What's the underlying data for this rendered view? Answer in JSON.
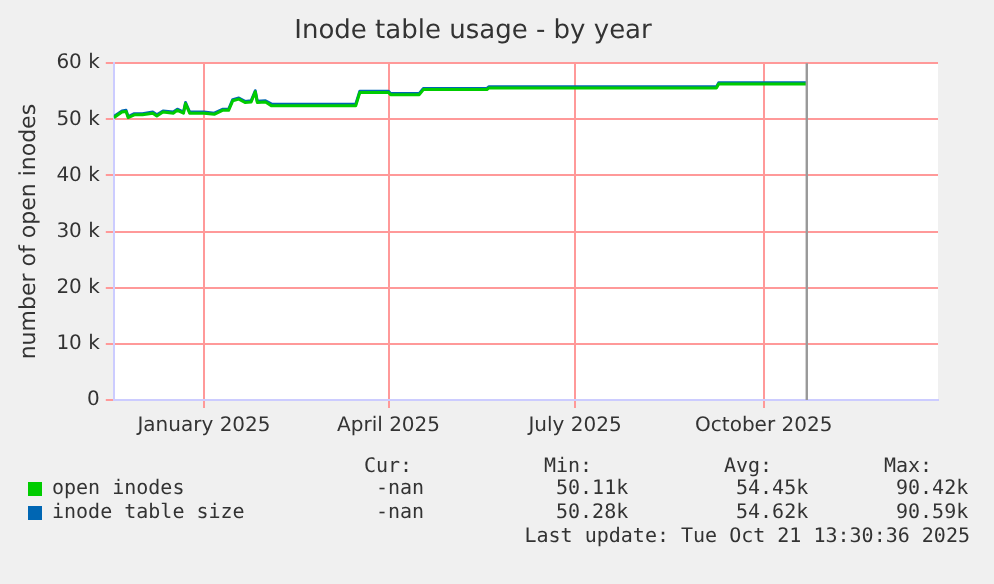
{
  "chart_data": {
    "type": "line",
    "title": "Inode table usage - by year",
    "ylabel": "number of open inodes",
    "x": [
      "2024-11-18",
      "2024-11-22",
      "2024-11-24",
      "2024-11-25",
      "2024-11-28",
      "2024-12-02",
      "2024-12-07",
      "2024-12-09",
      "2024-12-12",
      "2024-12-17",
      "2024-12-19",
      "2024-12-22",
      "2024-12-23",
      "2024-12-25",
      "2025-01-01",
      "2025-01-06",
      "2025-01-10",
      "2025-01-13",
      "2025-01-15",
      "2025-01-18",
      "2025-01-21",
      "2025-01-24",
      "2025-01-26",
      "2025-01-27",
      "2025-01-31",
      "2025-02-03",
      "2025-02-07",
      "2025-03-16",
      "2025-03-18",
      "2025-04-01",
      "2025-04-02",
      "2025-04-16",
      "2025-04-18",
      "2025-05-19",
      "2025-05-20",
      "2025-09-08",
      "2025-09-09",
      "2025-10-22"
    ],
    "series": [
      {
        "name": "open inodes",
        "color": "#00cc00",
        "values": [
          50300,
          51300,
          51400,
          50300,
          50800,
          50800,
          51100,
          50600,
          51300,
          51100,
          51600,
          51100,
          52800,
          51100,
          51100,
          50900,
          51600,
          51600,
          53300,
          53600,
          53000,
          53100,
          54900,
          53000,
          53100,
          52400,
          52400,
          52400,
          54800,
          54800,
          54400,
          54400,
          55300,
          55300,
          55600,
          55600,
          56300,
          56300
        ]
      },
      {
        "name": "inode table size",
        "color": "#0066b3",
        "values": [
          50500,
          51500,
          51600,
          50500,
          51000,
          51000,
          51300,
          50800,
          51500,
          51300,
          51800,
          51300,
          53000,
          51300,
          51300,
          51100,
          51800,
          51800,
          53500,
          53800,
          53200,
          53300,
          55100,
          53200,
          53300,
          52700,
          52700,
          52700,
          55000,
          55000,
          54600,
          54600,
          55500,
          55500,
          55800,
          55800,
          56500,
          56500
        ]
      }
    ],
    "xlim": [
      "2024-11-18",
      "2025-12-25"
    ],
    "xticks": [
      {
        "value": "2025-01-01",
        "label": "January 2025"
      },
      {
        "value": "2025-04-01",
        "label": "April 2025"
      },
      {
        "value": "2025-07-01",
        "label": "July 2025"
      },
      {
        "value": "2025-10-01",
        "label": "October 2025"
      }
    ],
    "ylim": [
      0,
      60000
    ],
    "yticks": [
      {
        "value": 0,
        "label": "0"
      },
      {
        "value": 10000,
        "label": "10 k"
      },
      {
        "value": 20000,
        "label": "20 k"
      },
      {
        "value": 30000,
        "label": "30 k"
      },
      {
        "value": 40000,
        "label": "40 k"
      },
      {
        "value": 50000,
        "label": "50 k"
      },
      {
        "value": 60000,
        "label": "60 k"
      }
    ],
    "ref_lines": [
      {
        "axis": "x",
        "value": "2025-10-22",
        "color": "#999999"
      }
    ],
    "grid": true,
    "legend": "bottom left",
    "marker": "none",
    "line_style": "solid",
    "annotations": [
      "Cur:",
      "Min:",
      "Avg:",
      "Max:",
      "-nan",
      "50.11k",
      "54.45k",
      "90.42k",
      "-nan",
      "50.28k",
      "54.62k",
      "90.59k",
      "Last update: Tue Oct 21 13:30:36 2025"
    ]
  }
}
